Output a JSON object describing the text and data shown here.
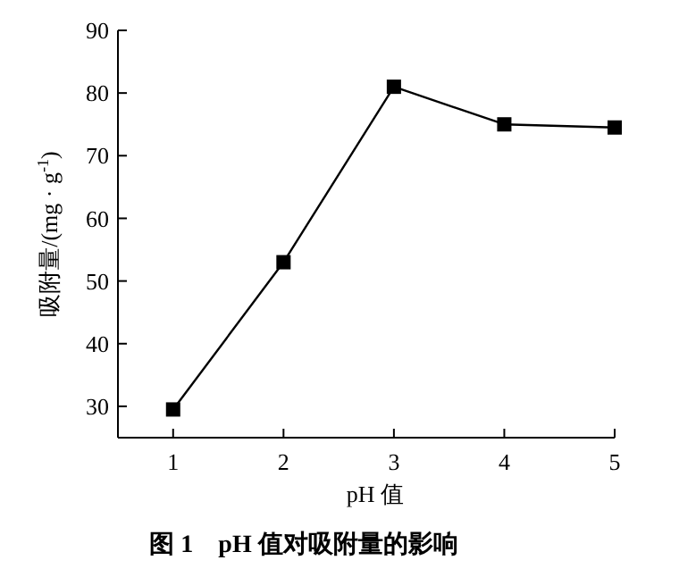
{
  "chart_data": {
    "type": "line",
    "title": "图 1　pH 值对吸附量的影响",
    "xlabel": "pH 值",
    "ylabel": "吸附量/(mg · g$^{-1}$)",
    "x": [
      1,
      2,
      3,
      4,
      5
    ],
    "series": [
      {
        "color": "#000000",
        "values": [
          29.5,
          53,
          81,
          75,
          74.5
        ]
      }
    ],
    "xlim": [
      0.5,
      5
    ],
    "xticks": [
      1,
      2,
      3,
      4,
      5
    ],
    "ylim": [
      25,
      90
    ],
    "yticks": [
      30,
      40,
      50,
      60,
      70,
      80,
      90
    ],
    "marker": "square",
    "line_style": "solid"
  }
}
